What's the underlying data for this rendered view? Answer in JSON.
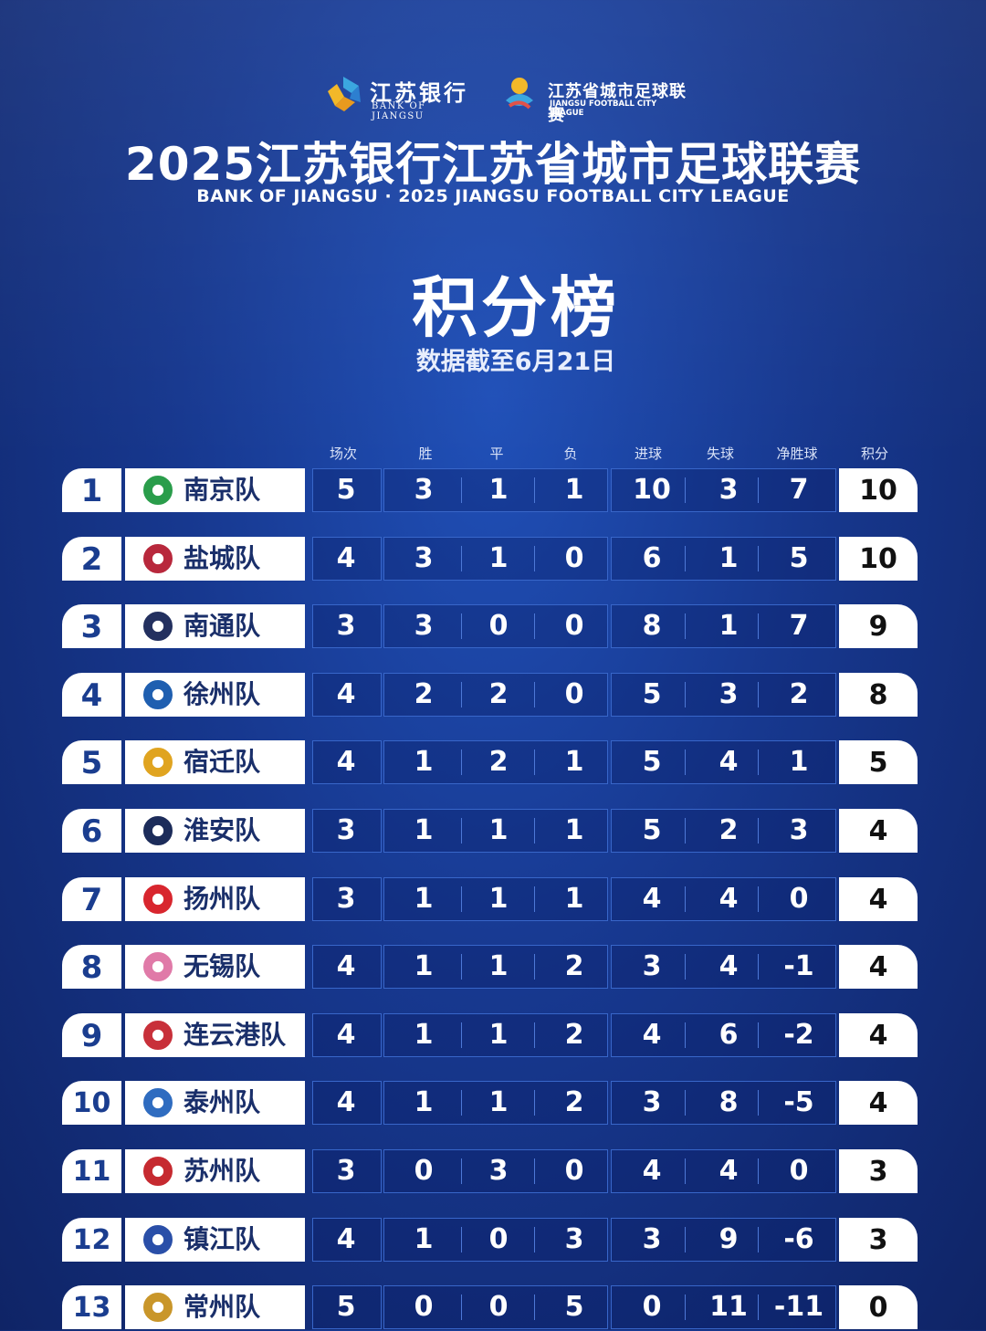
{
  "header": {
    "bank_cn": "江苏银行",
    "bank_en": "BANK OF JIANGSU",
    "league_cn": "江苏省城市足球联赛",
    "league_en": "JIANGSU FOOTBALL CITY LEAGUE",
    "title": "2025江苏银行江苏省城市足球联赛",
    "subtitle": "BANK OF JIANGSU · 2025 JIANGSU FOOTBALL CITY LEAGUE",
    "table_title": "积分榜",
    "date_note": "数据截至6月21日"
  },
  "colors": {
    "accent": "#1a3d8f",
    "background": "#17388f",
    "cell_border": "#3866c9"
  },
  "columns": [
    "场次",
    "胜",
    "平",
    "负",
    "进球",
    "失球",
    "净胜球",
    "积分"
  ],
  "rows": [
    {
      "rank": "1",
      "team": "南京队",
      "icon": "nanjing-crest-icon",
      "icon_color": "#2a9d4b",
      "played": "5",
      "won": "3",
      "drawn": "1",
      "lost": "1",
      "gf": "10",
      "ga": "3",
      "gd": "7",
      "pts": "10"
    },
    {
      "rank": "2",
      "team": "盐城队",
      "icon": "yancheng-crest-icon",
      "icon_color": "#b8283c",
      "played": "4",
      "won": "3",
      "drawn": "1",
      "lost": "0",
      "gf": "6",
      "ga": "1",
      "gd": "5",
      "pts": "10"
    },
    {
      "rank": "3",
      "team": "南通队",
      "icon": "nantong-crest-icon",
      "icon_color": "#23305f",
      "played": "3",
      "won": "3",
      "drawn": "0",
      "lost": "0",
      "gf": "8",
      "ga": "1",
      "gd": "7",
      "pts": "9"
    },
    {
      "rank": "4",
      "team": "徐州队",
      "icon": "xuzhou-crest-icon",
      "icon_color": "#1f5fb0",
      "played": "4",
      "won": "2",
      "drawn": "2",
      "lost": "0",
      "gf": "5",
      "ga": "3",
      "gd": "2",
      "pts": "8"
    },
    {
      "rank": "5",
      "team": "宿迁队",
      "icon": "suqian-crest-icon",
      "icon_color": "#e0a420",
      "played": "4",
      "won": "1",
      "drawn": "2",
      "lost": "1",
      "gf": "5",
      "ga": "4",
      "gd": "1",
      "pts": "5"
    },
    {
      "rank": "6",
      "team": "淮安队",
      "icon": "huaian-crest-icon",
      "icon_color": "#1c2c5a",
      "played": "3",
      "won": "1",
      "drawn": "1",
      "lost": "1",
      "gf": "5",
      "ga": "2",
      "gd": "3",
      "pts": "4"
    },
    {
      "rank": "7",
      "team": "扬州队",
      "icon": "yangzhou-crest-icon",
      "icon_color": "#d8262e",
      "played": "3",
      "won": "1",
      "drawn": "1",
      "lost": "1",
      "gf": "4",
      "ga": "4",
      "gd": "0",
      "pts": "4"
    },
    {
      "rank": "8",
      "team": "无锡队",
      "icon": "wuxi-crest-icon",
      "icon_color": "#e07aa8",
      "played": "4",
      "won": "1",
      "drawn": "1",
      "lost": "2",
      "gf": "3",
      "ga": "4",
      "gd": "-1",
      "pts": "4"
    },
    {
      "rank": "9",
      "team": "连云港队",
      "icon": "lianyungang-crest-icon",
      "icon_color": "#c8303a",
      "played": "4",
      "won": "1",
      "drawn": "1",
      "lost": "2",
      "gf": "4",
      "ga": "6",
      "gd": "-2",
      "pts": "4"
    },
    {
      "rank": "10",
      "team": "泰州队",
      "icon": "taizhou-crest-icon",
      "icon_color": "#2f6cc0",
      "played": "4",
      "won": "1",
      "drawn": "1",
      "lost": "2",
      "gf": "3",
      "ga": "8",
      "gd": "-5",
      "pts": "4"
    },
    {
      "rank": "11",
      "team": "苏州队",
      "icon": "suzhou-crest-icon",
      "icon_color": "#c62a30",
      "played": "3",
      "won": "0",
      "drawn": "3",
      "lost": "0",
      "gf": "4",
      "ga": "4",
      "gd": "0",
      "pts": "3"
    },
    {
      "rank": "12",
      "team": "镇江队",
      "icon": "zhenjiang-crest-icon",
      "icon_color": "#2a4fa8",
      "played": "4",
      "won": "1",
      "drawn": "0",
      "lost": "3",
      "gf": "3",
      "ga": "9",
      "gd": "-6",
      "pts": "3"
    },
    {
      "rank": "13",
      "team": "常州队",
      "icon": "changzhou-crest-icon",
      "icon_color": "#c9962a",
      "played": "5",
      "won": "0",
      "drawn": "0",
      "lost": "5",
      "gf": "0",
      "ga": "11",
      "gd": "-11",
      "pts": "0"
    }
  ]
}
